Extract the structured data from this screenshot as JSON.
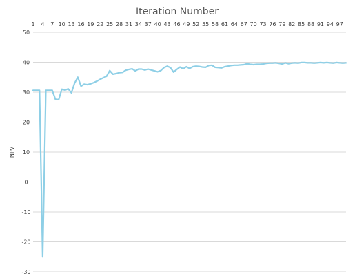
{
  "chart_data": {
    "type": "line",
    "title": "Iteration Number",
    "ylabel": "NPV",
    "xlabel": "",
    "x_axis_position": "top",
    "x_tick_labels": [
      "1",
      "4",
      "7",
      "10",
      "13",
      "16",
      "19",
      "22",
      "25",
      "28",
      "31",
      "34",
      "37",
      "40",
      "43",
      "46",
      "49",
      "52",
      "55",
      "58",
      "61",
      "64",
      "67",
      "70",
      "73",
      "76",
      "79",
      "82",
      "85",
      "88",
      "91",
      "94",
      "97"
    ],
    "ylim": [
      -30,
      50
    ],
    "y_ticks": [
      50,
      40,
      30,
      20,
      10,
      0,
      -10,
      -20,
      -30
    ],
    "grid": true,
    "legend": "none",
    "series_color": "#8ecfe6",
    "x": [
      1,
      2,
      3,
      4,
      5,
      6,
      7,
      8,
      9,
      10,
      11,
      12,
      13,
      14,
      15,
      16,
      17,
      18,
      19,
      20,
      21,
      22,
      23,
      24,
      25,
      26,
      27,
      28,
      29,
      30,
      31,
      32,
      33,
      34,
      35,
      36,
      37,
      38,
      39,
      40,
      41,
      42,
      43,
      44,
      45,
      46,
      47,
      48,
      49,
      50,
      51,
      52,
      53,
      54,
      55,
      56,
      57,
      58,
      59,
      60,
      61,
      62,
      63,
      64,
      65,
      66,
      67,
      68,
      69,
      70,
      71,
      72,
      73,
      74,
      75,
      76,
      77,
      78,
      79,
      80,
      81,
      82,
      83,
      84,
      85,
      86,
      87,
      88,
      89,
      90,
      91,
      92,
      93,
      94,
      95,
      96,
      97,
      98,
      99
    ],
    "values": [
      30.6,
      30.6,
      30.6,
      -25,
      30.6,
      30.6,
      30.6,
      27.6,
      27.5,
      31,
      30.7,
      31.1,
      29.8,
      33,
      35,
      32,
      32.7,
      32.5,
      32.8,
      33.2,
      33.7,
      34.3,
      34.8,
      35.3,
      37.2,
      36,
      36.2,
      36.5,
      36.6,
      37.3,
      37.6,
      37.8,
      37.1,
      37.7,
      37.7,
      37.4,
      37.7,
      37.4,
      37.1,
      36.8,
      37.2,
      38.2,
      38.7,
      38.2,
      36.7,
      37.6,
      38.4,
      37.8,
      38.5,
      37.9,
      38.5,
      38.7,
      38.6,
      38.4,
      38.3,
      38.9,
      39,
      38.3,
      38.2,
      38.1,
      38.5,
      38.7,
      38.9,
      39,
      39,
      39.1,
      39.2,
      39.5,
      39.3,
      39.2,
      39.3,
      39.3,
      39.4,
      39.6,
      39.7,
      39.7,
      39.8,
      39.6,
      39.4,
      39.8,
      39.5,
      39.7,
      39.8,
      39.7,
      39.9,
      39.9,
      39.8,
      39.8,
      39.7,
      39.8,
      39.9,
      39.8,
      39.9,
      39.8,
      39.7,
      39.9,
      39.8,
      39.7,
      39.8
    ]
  }
}
